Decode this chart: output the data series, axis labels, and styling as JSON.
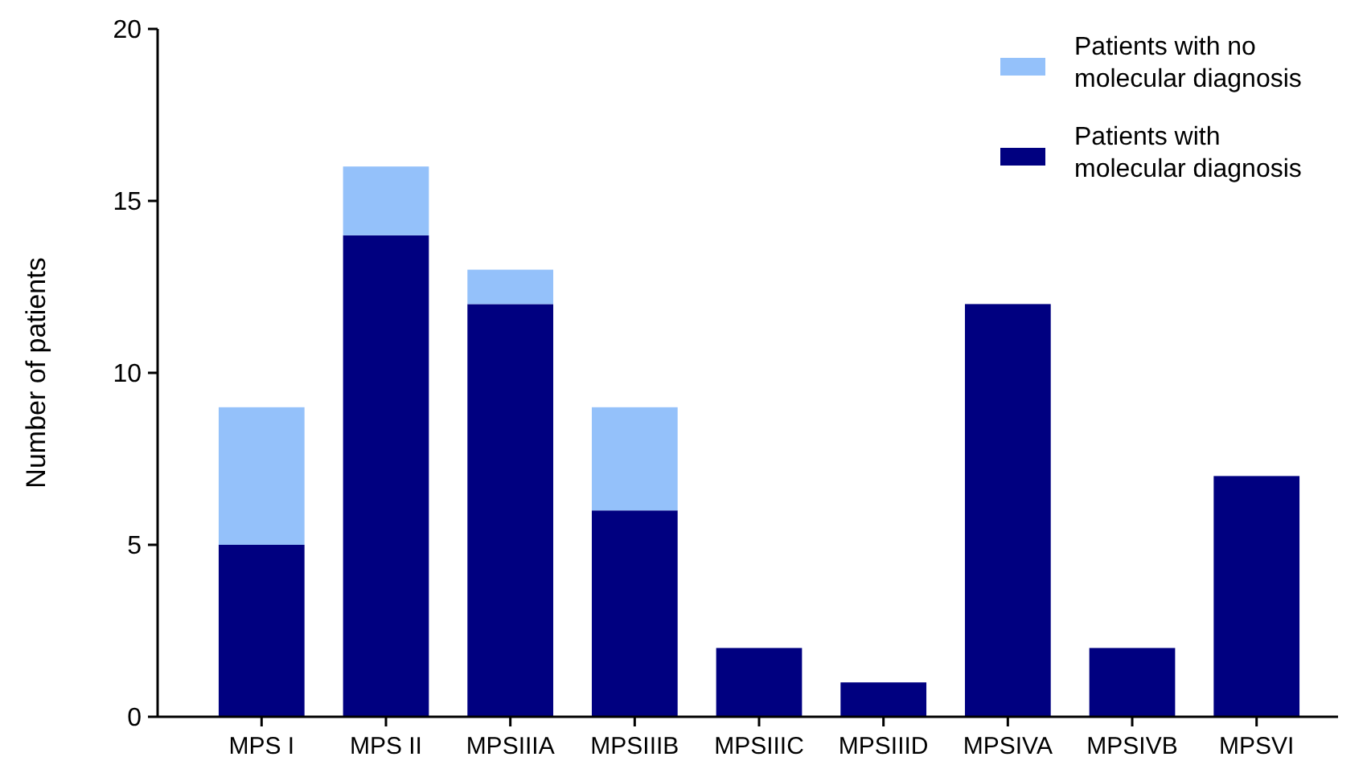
{
  "chart_data": {
    "type": "bar",
    "ylabel": "Number of patients",
    "categories": [
      "MPS I",
      "MPS II",
      "MPSIIIA",
      "MPSIIIB",
      "MPSIIIC",
      "MPSIIID",
      "MPSIVA",
      "MPSIVB",
      "MPSVI"
    ],
    "series": [
      {
        "name": "Patients with molecular diagnosis",
        "color": "#000080",
        "values": [
          5,
          14,
          12,
          6,
          2,
          1,
          12,
          2,
          7
        ]
      },
      {
        "name": "Patients with no molecular diagnosis",
        "color": "#94c1fa",
        "values": [
          4,
          2,
          1,
          3,
          0,
          0,
          0,
          0,
          0
        ]
      }
    ],
    "stacked": true,
    "ylim": [
      0,
      20
    ],
    "yticks": [
      0,
      5,
      10,
      15,
      20
    ],
    "grid": false,
    "legend": "top right"
  }
}
